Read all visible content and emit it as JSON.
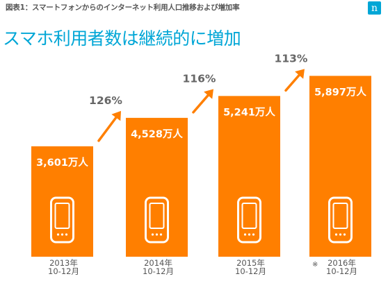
{
  "header": {
    "figure_label": "図表1：スマートフォンからのインターネット利用人口推移および増加率",
    "title": "スマホ利用者数は継続的に増加",
    "logo_text": "n"
  },
  "colors": {
    "bar": "#ff7f00",
    "title": "#00a6d6",
    "growth_label": "#666666",
    "axis_label": "#555555",
    "logo_background": "#00a6d6"
  },
  "icons": {
    "bar_icon": "smartphone-icon",
    "arrow": "growth-arrow-icon"
  },
  "chart_data": {
    "type": "bar",
    "categories": [
      "2013年\n10-12月",
      "2014年\n10-12月",
      "2015年\n10-12月",
      "2016年\n10-12月"
    ],
    "category_notes": [
      "",
      "",
      "",
      "※"
    ],
    "values": [
      3601,
      4528,
      5241,
      5897
    ],
    "value_labels": [
      "3,601万人",
      "4,528万人",
      "5,241万人",
      "5,897万人"
    ],
    "growth_rates": [
      "126%",
      "116%",
      "113%"
    ],
    "ylim": [
      0,
      6500
    ]
  }
}
